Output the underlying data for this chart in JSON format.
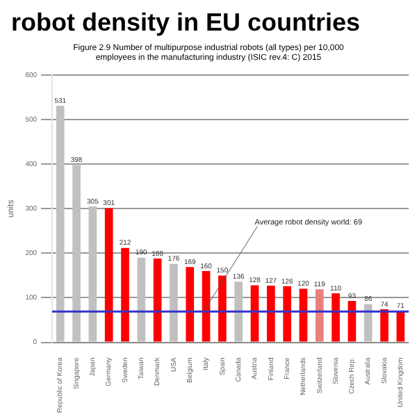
{
  "chart_data": {
    "type": "bar",
    "title": "robot density in EU countries",
    "subtitle": "Figure 2.9 Number of multipurpose industrial robots (all types) per 10,000 employees in the manufacturing industry (ISIC rev.4: C) 2015",
    "ylabel": "units",
    "categories": [
      "Republic of Korea",
      "Singapore",
      "Japan",
      "Germany",
      "Sweden",
      "Taiwan",
      "Denmark",
      "USA",
      "Belgium",
      "Italy",
      "Spain",
      "Canada",
      "Austria",
      "Finland",
      "France",
      "Netherlands",
      "Switzerland",
      "Slovenia",
      "Czech Rep.",
      "Australia",
      "Slovakia",
      "United Kingdom"
    ],
    "values": [
      531,
      398,
      305,
      301,
      212,
      190,
      188,
      176,
      169,
      160,
      150,
      136,
      128,
      127,
      126,
      120,
      119,
      110,
      93,
      86,
      74,
      71
    ],
    "colors": [
      "#c0c0c0",
      "#c0c0c0",
      "#c0c0c0",
      "#ff0000",
      "#ff0000",
      "#c0c0c0",
      "#ff0000",
      "#c0c0c0",
      "#ff0000",
      "#ff0000",
      "#ff0000",
      "#c0c0c0",
      "#ff0000",
      "#ff0000",
      "#ff0000",
      "#ff0000",
      "#e88080",
      "#ff0000",
      "#ff0000",
      "#c0c0c0",
      "#ff0000",
      "#ff0000"
    ],
    "ylim": [
      0,
      600
    ],
    "yticks": [
      0,
      100,
      200,
      300,
      400,
      500,
      600
    ],
    "grid": "y",
    "data_labels": true,
    "ref_lines": [
      {
        "axis": "y",
        "value": 69,
        "label": "Average robot density world: 69",
        "color": "#3333cc"
      }
    ]
  }
}
